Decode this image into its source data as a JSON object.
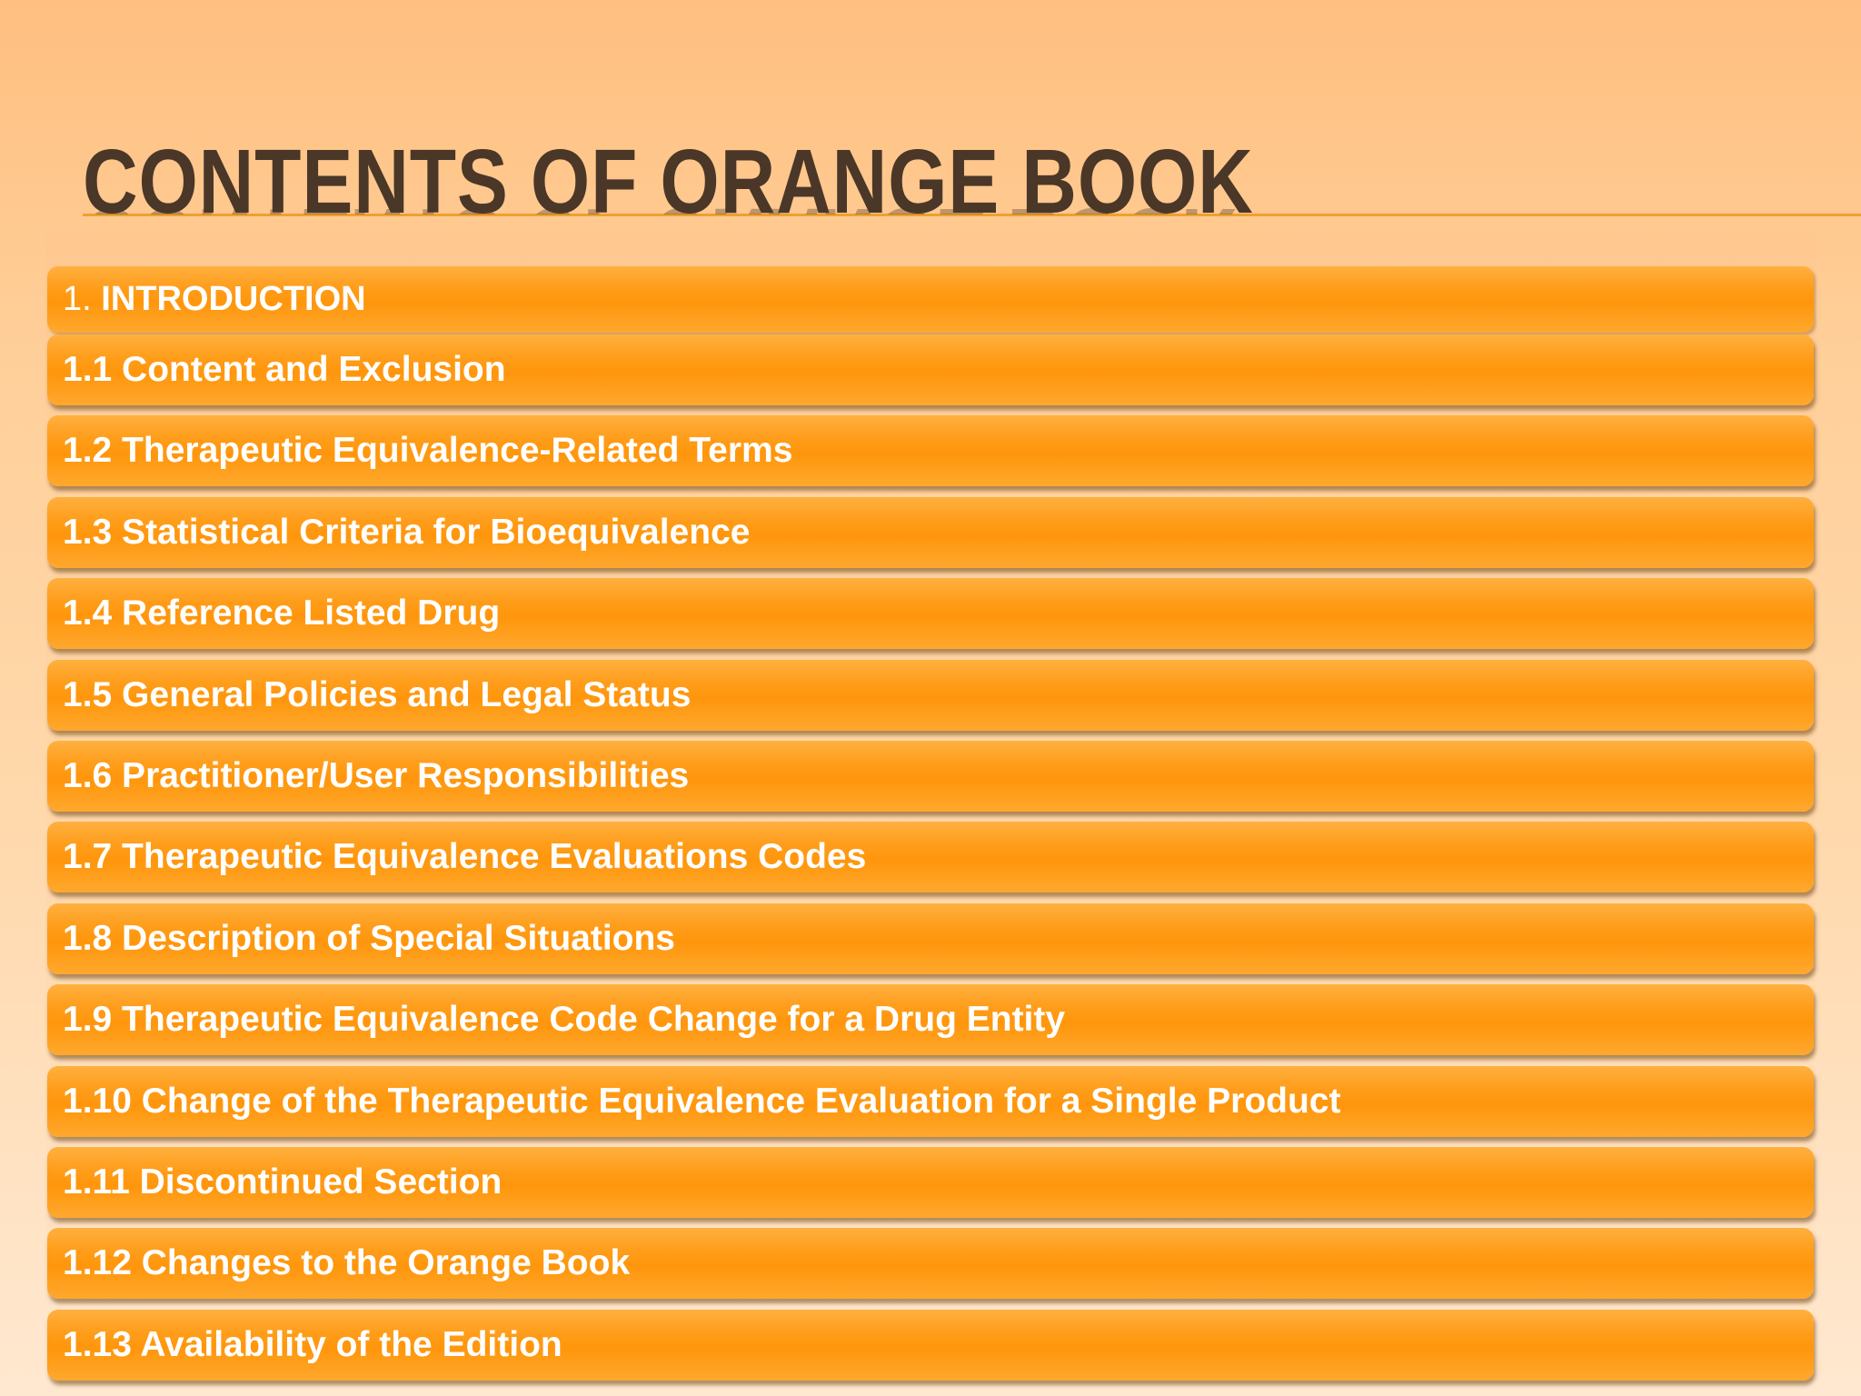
{
  "slide": {
    "title": "CONTENTS OF ORANGE BOOK",
    "intro": {
      "number": "1.",
      "label": "INTRODUCTION"
    },
    "items": [
      "1.1 Content and Exclusion",
      "1.2 Therapeutic Equivalence-Related Terms",
      "1.3 Statistical Criteria for Bioequivalence",
      "1.4 Reference Listed Drug",
      "1.5 General Policies and Legal Status",
      "1.6 Practitioner/User Responsibilities",
      "1.7 Therapeutic Equivalence Evaluations Codes",
      "1.8 Description of Special Situations",
      "1.9 Therapeutic Equivalence Code Change for a Drug Entity",
      "1.10 Change of the Therapeutic Equivalence Evaluation for a Single Product",
      "1.11 Discontinued Section",
      "1.12 Changes to the Orange Book",
      "1.13 Availability of the Edition"
    ],
    "colors": {
      "accent": "#ff9c18",
      "title": "#4a3728",
      "background": "#ffcf99"
    }
  }
}
